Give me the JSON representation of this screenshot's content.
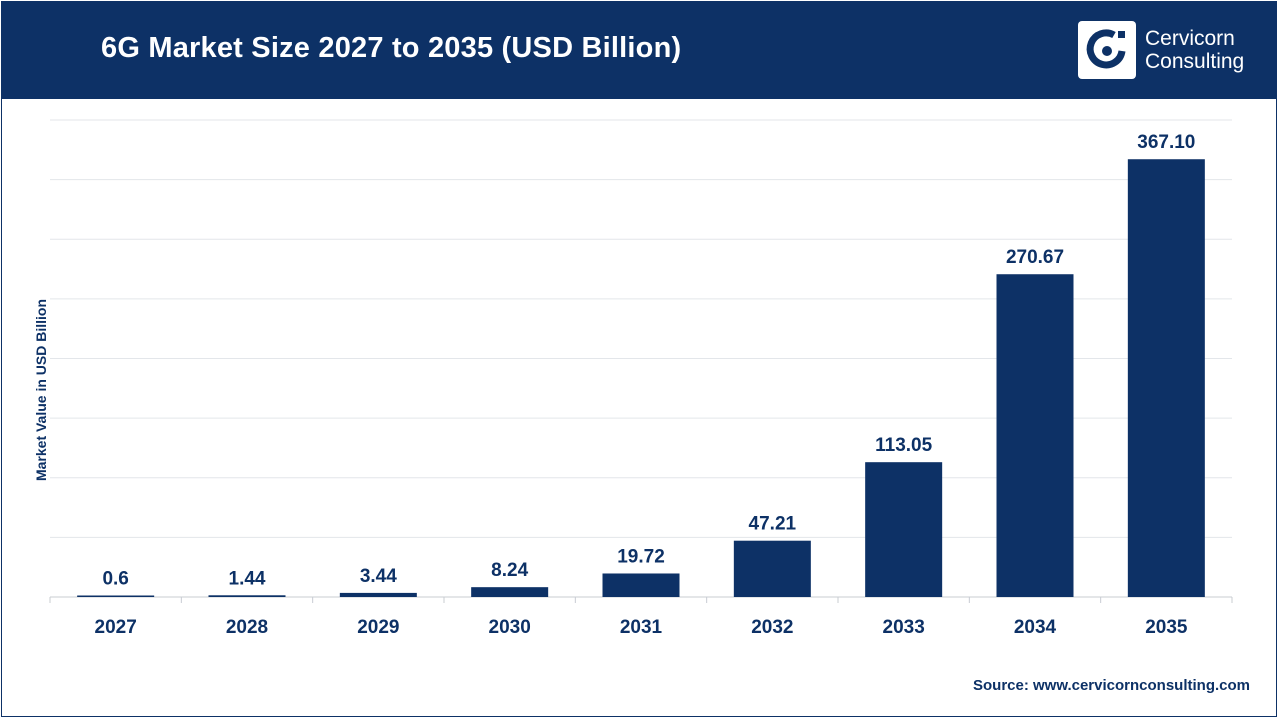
{
  "header": {
    "title": "6G Market Size 2027 to 2035 (USD Billion)",
    "logo_line1": "Cervicorn",
    "logo_line2": "Consulting",
    "logo_icon": "cervicorn-logo-icon"
  },
  "colors": {
    "primary": "#0d3166",
    "gridline": "#e3e6ea",
    "background": "#ffffff"
  },
  "chart_data": {
    "type": "bar",
    "title": "6G Market Size 2027 to 2035 (USD Billion)",
    "xlabel": "",
    "ylabel": "Market Value in USD Billion",
    "categories": [
      "2027",
      "2028",
      "2029",
      "2030",
      "2031",
      "2032",
      "2033",
      "2034",
      "2035"
    ],
    "values": [
      0.6,
      1.44,
      3.44,
      8.24,
      19.72,
      47.21,
      113.05,
      270.67,
      367.1
    ],
    "value_labels": [
      "0.6",
      "1.44",
      "3.44",
      "8.24",
      "19.72",
      "47.21",
      "113.05",
      "270.67",
      "367.10"
    ],
    "ylim": [
      0,
      400
    ],
    "grid": true,
    "legend": "none"
  },
  "footer": {
    "source": "Source: www.cervicornconsulting.com"
  }
}
